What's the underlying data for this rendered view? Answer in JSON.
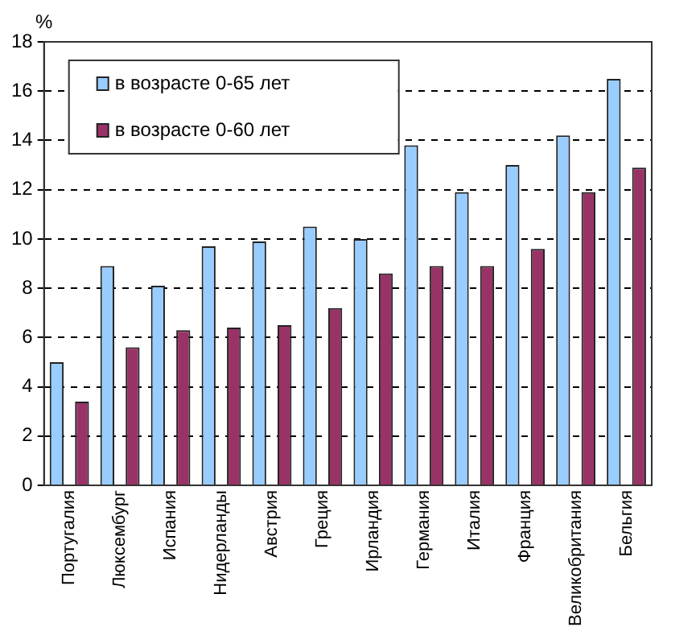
{
  "chart_data": {
    "type": "bar",
    "ylabel": "%",
    "categories": [
      "Португалия",
      "Люксембург",
      "Испания",
      "Нидерланды",
      "Австрия",
      "Греция",
      "Ирландия",
      "Германия",
      "Италия",
      "Франция",
      "Великобритания",
      "Бельгия"
    ],
    "series": [
      {
        "name": "в возрасте 0-65 лет",
        "color": "#99ccff",
        "values": [
          5.0,
          8.9,
          8.1,
          9.7,
          9.9,
          10.5,
          10.0,
          13.8,
          11.9,
          13.0,
          14.2,
          16.5
        ]
      },
      {
        "name": "в возрасте 0-60 лет",
        "color": "#993366",
        "values": [
          3.4,
          5.6,
          6.3,
          6.4,
          6.5,
          7.2,
          8.6,
          8.9,
          8.9,
          9.6,
          11.9,
          12.9
        ]
      }
    ],
    "ylim": [
      0,
      18
    ],
    "yticks": [
      0,
      2,
      4,
      6,
      8,
      10,
      12,
      14,
      16,
      18
    ],
    "grid": "y",
    "legend": "top left"
  }
}
